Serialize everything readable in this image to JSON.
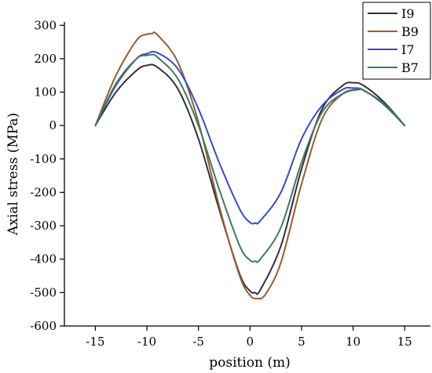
{
  "chart_data": {
    "type": "line",
    "title": "",
    "xlabel": "position (m)",
    "ylabel": "Axial stress (MPa)",
    "xlim": [
      -18,
      17.5
    ],
    "ylim": [
      -600,
      310
    ],
    "xticks": [
      -15,
      -10,
      -5,
      0,
      5,
      10,
      15
    ],
    "yticks": [
      -600,
      -500,
      -400,
      -300,
      -200,
      -100,
      0,
      100,
      200,
      300
    ],
    "grid": false,
    "legend_position": "top-right",
    "series": [
      {
        "name": "I9",
        "color": "#2f2f3f",
        "x": [
          -15,
          -13,
          -11,
          -10,
          -9,
          -7,
          -5,
          -3,
          -1,
          0,
          0.5,
          1,
          3,
          5,
          7,
          9,
          10,
          11,
          13,
          15
        ],
        "y": [
          0,
          100,
          165,
          180,
          175,
          110,
          -40,
          -250,
          -445,
          -495,
          -500,
          -492,
          -360,
          -130,
          50,
          120,
          128,
          120,
          70,
          0
        ]
      },
      {
        "name": "B9",
        "color": "#9c5a2c",
        "x": [
          -15,
          -13,
          -11,
          -10,
          -9.5,
          -9,
          -7,
          -5,
          -3,
          -1,
          0,
          0.7,
          1.5,
          3,
          5,
          7,
          9,
          10.5,
          11,
          13,
          15
        ],
        "y": [
          0,
          150,
          255,
          273,
          275,
          272,
          190,
          10,
          -240,
          -450,
          -508,
          -518,
          -505,
          -410,
          -175,
          20,
          95,
          108,
          106,
          65,
          0
        ]
      },
      {
        "name": "I7",
        "color": "#3a48d0",
        "x": [
          -15,
          -13,
          -11,
          -10,
          -9,
          -7,
          -5,
          -3,
          -1,
          0,
          0.5,
          1,
          3,
          5,
          7,
          9,
          10,
          11,
          13,
          15
        ],
        "y": [
          0,
          120,
          200,
          215,
          218,
          170,
          50,
          -110,
          -250,
          -290,
          -292,
          -285,
          -200,
          -40,
          60,
          108,
          112,
          106,
          62,
          0
        ]
      },
      {
        "name": "B7",
        "color": "#3d7a60",
        "x": [
          -15,
          -13,
          -11,
          -10,
          -9.5,
          -9,
          -7,
          -5,
          -3,
          -1,
          0,
          0.5,
          1,
          3,
          5,
          7,
          9,
          10.5,
          11,
          13,
          15
        ],
        "y": [
          0,
          125,
          200,
          210,
          212,
          205,
          140,
          0,
          -190,
          -360,
          -403,
          -406,
          -400,
          -305,
          -110,
          40,
          95,
          107,
          105,
          65,
          0
        ]
      }
    ]
  }
}
